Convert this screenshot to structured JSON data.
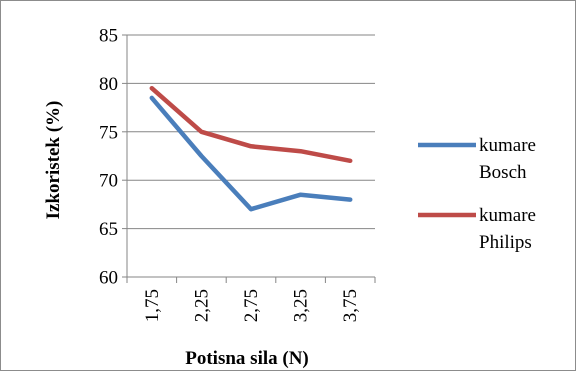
{
  "chart_data": {
    "type": "line",
    "categories": [
      "1,75",
      "2,25",
      "2,75",
      "3,25",
      "3,75"
    ],
    "y_ticks": [
      "60",
      "65",
      "70",
      "75",
      "80",
      "85"
    ],
    "ylim": [
      60,
      85
    ],
    "xlabel": "Potisna sila (N)",
    "ylabel": "Izkoristek (%)",
    "grid": true,
    "legend_position": "right",
    "series": [
      {
        "name": "kumare Bosch",
        "legend_lines": [
          "kumare",
          "Bosch"
        ],
        "color": "#4a7ebb",
        "values": [
          78.5,
          72.5,
          67.0,
          68.5,
          68.0
        ]
      },
      {
        "name": "kumare Philips",
        "legend_lines": [
          "kumare",
          "Philips"
        ],
        "color": "#be4b48",
        "values": [
          79.5,
          75.0,
          73.5,
          73.0,
          72.0
        ]
      }
    ]
  }
}
